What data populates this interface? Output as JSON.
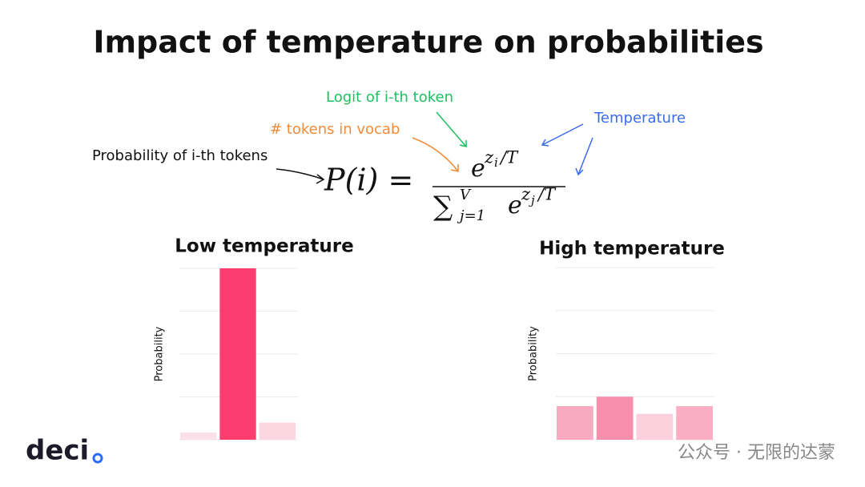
{
  "title": "Impact of temperature on probabilities",
  "annotations": {
    "probability": "Probability of i-th tokens",
    "vocab": "# tokens in vocab",
    "logit": "Logit of i-th token",
    "temperature": "Temperature"
  },
  "formula": {
    "lhs": "P(i) =",
    "numerator": {
      "base": "e",
      "exp": "z",
      "exp_sub": "i",
      "exp_rest": "/T"
    },
    "denominator": {
      "sum": "∑",
      "upper": "V",
      "lower": "j=1",
      "base": "e",
      "exp": "z",
      "exp_sub": "j",
      "exp_rest": "/T"
    }
  },
  "logo": "deci",
  "watermark": "公众号 · 无限的达蒙",
  "chart_data": [
    {
      "type": "bar",
      "title": "Low temperature",
      "y_label": "Probability",
      "values": [
        0.17,
        4.0,
        0.4
      ],
      "colors": [
        "#fbe0e8",
        "#fc3d6f",
        "#fcd6e1"
      ],
      "ylim": [
        0,
        4
      ],
      "yticks": [
        0,
        1,
        2,
        3,
        4
      ],
      "grid": true
    },
    {
      "type": "bar",
      "title": "High temperature",
      "y_label": "Probability",
      "values": [
        0.78,
        1.0,
        0.6,
        0.78
      ],
      "colors": [
        "#f9a9c0",
        "#f78fac",
        "#fbd0dc",
        "#f9aec4"
      ],
      "ylim": [
        0,
        4
      ],
      "yticks": [
        0,
        1,
        2,
        3,
        4
      ],
      "grid": true
    }
  ]
}
